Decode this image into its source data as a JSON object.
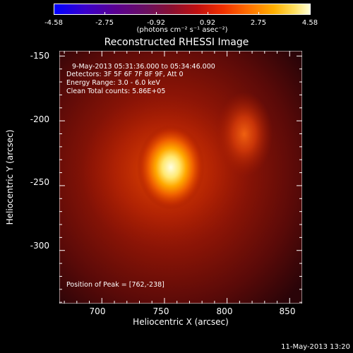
{
  "colorbar": {
    "ticks": [
      "-4.58",
      "-2.75",
      "-0.92",
      "0.92",
      "2.75",
      "4.58"
    ],
    "unit": "(photons cm⁻² s⁻¹ asec⁻²)"
  },
  "title": "Reconstructed RHESSI Image",
  "info": {
    "time": "9-May-2013 05:31:36.000 to 05:34:46.000",
    "detectors": "Detectors: 3F 5F 6F 7F 8F 9F, Att 0",
    "energy": "Energy Range: 3.0 - 6.0 keV",
    "clean": "Clean    Total counts: 5.86E+05",
    "peak": "Position of Peak = [762,-238]"
  },
  "xaxis": {
    "label": "Heliocentric X (arcsec)",
    "ticks": [
      "700",
      "750",
      "800",
      "850"
    ]
  },
  "yaxis": {
    "label": "Heliocentric Y (arcsec)",
    "ticks": [
      "-150",
      "-200",
      "-250",
      "-300"
    ]
  },
  "footer": "11-May-2013 13:20",
  "chart_data": {
    "type": "heatmap",
    "title": "Reconstructed RHESSI Image",
    "xlabel": "Heliocentric X (arcsec)",
    "ylabel": "Heliocentric Y (arcsec)",
    "xlim": [
      666,
      860
    ],
    "ylim": [
      -341,
      -146
    ],
    "color_range": [
      -4.58,
      4.58
    ],
    "colorbar_label": "(photons cm⁻² s⁻¹ asec⁻²)",
    "peak": {
      "x": 762,
      "y": -238
    },
    "sources": [
      {
        "x": 760,
        "y": -240,
        "intensity": 4.58
      },
      {
        "x": 817,
        "y": -222,
        "intensity": 2.2
      }
    ]
  }
}
